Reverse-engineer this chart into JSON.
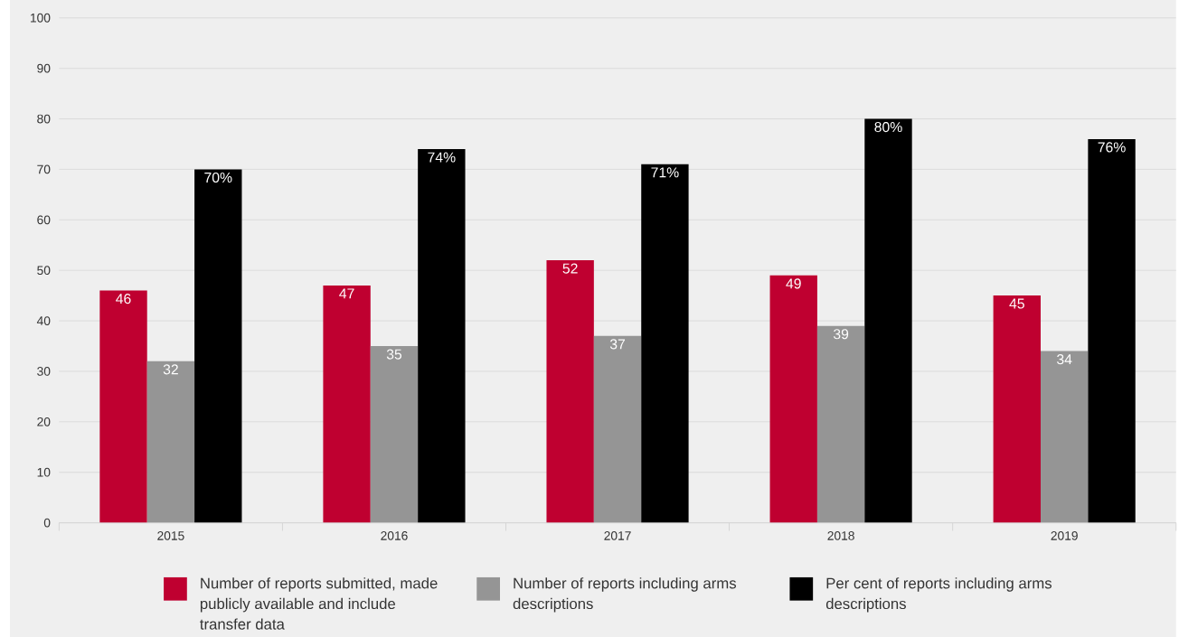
{
  "chart_data": {
    "type": "bar",
    "categories": [
      "2015",
      "2016",
      "2017",
      "2018",
      "2019"
    ],
    "series": [
      {
        "name": "Number of reports submitted, made publicly available and include transfer data",
        "color": "#bf0030",
        "values": [
          46,
          47,
          52,
          49,
          45
        ],
        "value_labels": [
          "46",
          "47",
          "52",
          "49",
          "45"
        ]
      },
      {
        "name": "Number of reports including arms descriptions",
        "color": "#959595",
        "values": [
          32,
          35,
          37,
          39,
          34
        ],
        "value_labels": [
          "32",
          "35",
          "37",
          "39",
          "34"
        ]
      },
      {
        "name": "Per cent of reports including arms descriptions",
        "color": "#000000",
        "values": [
          70,
          74,
          71,
          80,
          76
        ],
        "value_labels": [
          "70%",
          "74%",
          "71%",
          "80%",
          "76%"
        ]
      }
    ],
    "ylim": [
      0,
      100
    ],
    "yticks": [
      0,
      10,
      20,
      30,
      40,
      50,
      60,
      70,
      80,
      90,
      100
    ],
    "grid": "y",
    "legend": "bottom"
  }
}
